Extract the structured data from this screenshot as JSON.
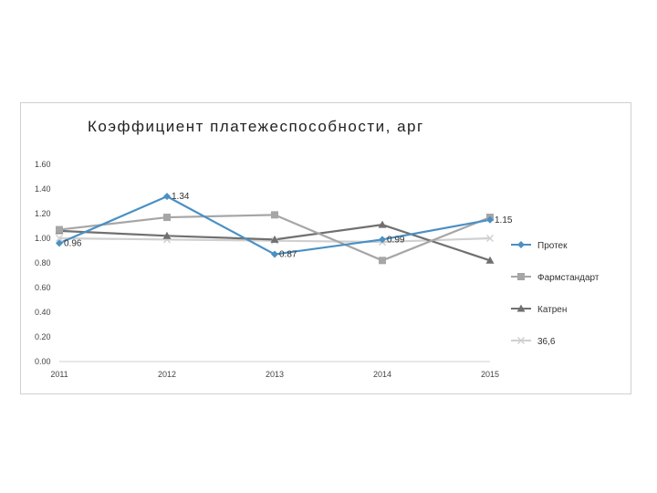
{
  "chart_data": {
    "type": "line",
    "title": "Коэффициент платежеспособности, арг",
    "xlabel": "",
    "ylabel": "",
    "x": [
      "2011",
      "2012",
      "2013",
      "2014",
      "2015"
    ],
    "ylim": [
      0,
      1.6
    ],
    "yticks": [
      "0.00",
      "0.20",
      "0.40",
      "0.60",
      "0.80",
      "1.00",
      "1.20",
      "1.40",
      "1.60"
    ],
    "grid": false,
    "legend_position": "right",
    "series": [
      {
        "name": "Протек",
        "values": [
          0.96,
          1.34,
          0.87,
          0.99,
          1.15
        ],
        "color": "#4a90c4",
        "marker": "diamond",
        "labels": [
          "0.96",
          "1.34",
          "0.87",
          "0.99",
          "1.15"
        ]
      },
      {
        "name": "Фармстандарт",
        "values": [
          1.07,
          1.17,
          1.19,
          0.82,
          1.17
        ],
        "color": "#a6a6a6",
        "marker": "square"
      },
      {
        "name": "Катрен",
        "values": [
          1.06,
          1.02,
          0.99,
          1.11,
          0.82
        ],
        "color": "#707070",
        "marker": "triangle"
      },
      {
        "name": "36,6",
        "values": [
          1.0,
          0.99,
          0.98,
          0.97,
          1.0
        ],
        "color": "#d0d0d0",
        "marker": "x"
      }
    ]
  }
}
